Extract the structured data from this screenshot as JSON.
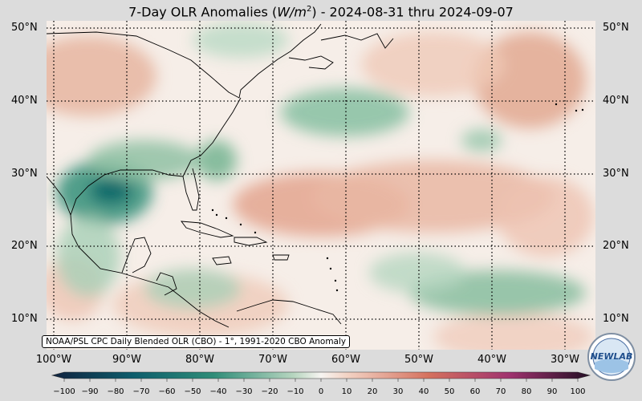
{
  "title": {
    "prefix": "7-Day OLR Anomalies (",
    "unit_base": "W/m",
    "unit_exp": "2",
    "suffix": ") - 2024-08-31 thru 2024-09-07"
  },
  "map": {
    "region": "Atlantic / Caribbean / Gulf of Mexico",
    "lon_range": [
      -100,
      -25
    ],
    "lat_range": [
      7,
      51
    ],
    "gridlines": "dotted",
    "lat_labels": [
      "50°N",
      "40°N",
      "30°N",
      "20°N",
      "10°N"
    ],
    "lon_labels": [
      "100°W",
      "90°W",
      "80°W",
      "70°W",
      "60°W",
      "50°W",
      "40°W",
      "30°W"
    ],
    "colors": {
      "negative": "#1b7a72",
      "positive": "#c9604f",
      "neutral": "#f7f0ea",
      "frame": "#dcdcdc"
    }
  },
  "credit": "NOAA/PSL CPC Daily Blended OLR (CBO) - 1°, 1991-2020 CBO Anomaly",
  "colorbar": {
    "ticks": [
      "−100",
      "−90",
      "−80",
      "−70",
      "−60",
      "−50",
      "−40",
      "−30",
      "−20",
      "−10",
      "0",
      "10",
      "20",
      "30",
      "40",
      "50",
      "60",
      "70",
      "80",
      "90",
      "100"
    ]
  },
  "logo": {
    "text": "NEWLAB",
    "icon": "lab-logo-icon"
  }
}
